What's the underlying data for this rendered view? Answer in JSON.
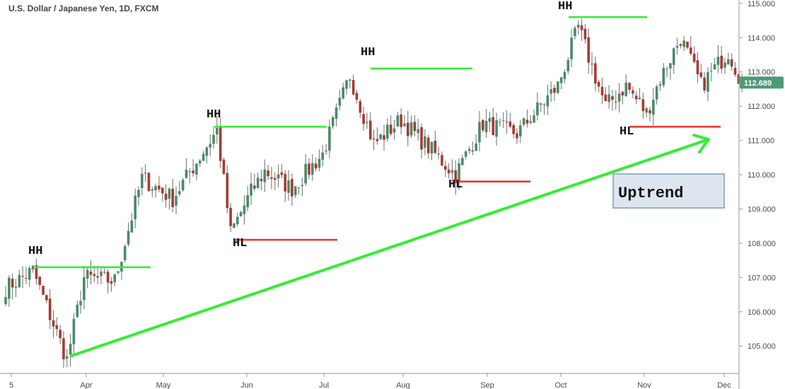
{
  "chart_data": {
    "type": "candlestick",
    "title": "U.S. Dollar / Japanese Yen, 1D, FXCM",
    "x_tick_labels": [
      "5",
      "Apr",
      "May",
      "Jun",
      "Jul",
      "Aug",
      "Sep",
      "Oct",
      "Nov",
      "Dec"
    ],
    "y_tick_labels": [
      "105.000",
      "106.000",
      "107.000",
      "108.000",
      "109.000",
      "110.000",
      "111.000",
      "112.000",
      "113.000",
      "114.000",
      "115.000"
    ],
    "ylim": [
      104.2,
      115.1
    ],
    "last_price": "112.689",
    "grid": false,
    "key_points": [
      {
        "x": 0,
        "y": 106.7
      },
      {
        "x": 8,
        "y": 107.2
      },
      {
        "x": 18,
        "y": 104.6
      },
      {
        "x": 23,
        "y": 107.0
      },
      {
        "x": 32,
        "y": 106.9
      },
      {
        "x": 40,
        "y": 109.9
      },
      {
        "x": 49,
        "y": 109.3
      },
      {
        "x": 62,
        "y": 111.3
      },
      {
        "x": 66,
        "y": 108.3
      },
      {
        "x": 72,
        "y": 109.5
      },
      {
        "x": 76,
        "y": 110.1
      },
      {
        "x": 84,
        "y": 109.6
      },
      {
        "x": 93,
        "y": 110.6
      },
      {
        "x": 101,
        "y": 112.9
      },
      {
        "x": 108,
        "y": 110.9
      },
      {
        "x": 116,
        "y": 111.6
      },
      {
        "x": 125,
        "y": 110.7
      },
      {
        "x": 132,
        "y": 110.0
      },
      {
        "x": 140,
        "y": 111.5
      },
      {
        "x": 150,
        "y": 111.2
      },
      {
        "x": 162,
        "y": 112.6
      },
      {
        "x": 168,
        "y": 114.3
      },
      {
        "x": 176,
        "y": 112.0
      },
      {
        "x": 182,
        "y": 112.6
      },
      {
        "x": 188,
        "y": 111.8
      },
      {
        "x": 192,
        "y": 112.8
      },
      {
        "x": 198,
        "y": 114.0
      },
      {
        "x": 204,
        "y": 112.6
      },
      {
        "x": 212,
        "y": 113.6
      },
      {
        "x": 216,
        "y": 112.7
      }
    ],
    "annotations": [
      {
        "label": "HH",
        "kind": "higher-high",
        "level": 107.3
      },
      {
        "label": "HH",
        "kind": "higher-high",
        "level": 111.4
      },
      {
        "label": "HH",
        "kind": "higher-high",
        "level": 113.1
      },
      {
        "label": "HH",
        "kind": "higher-high",
        "level": 114.6
      },
      {
        "label": "HL",
        "kind": "higher-low",
        "level": 108.1
      },
      {
        "label": "HL",
        "kind": "higher-low",
        "level": 109.8
      },
      {
        "label": "HL",
        "kind": "higher-low",
        "level": 111.4
      }
    ],
    "trend_label": "Uptrend"
  },
  "colors": {
    "up": "#4a8a69",
    "down": "#a63a32",
    "wick": "#6d6d6d",
    "hh_line": "#33ee33",
    "hl_line": "#e53935",
    "trend_arrow": "#33ee33",
    "price_tag": "#4e9a78",
    "uptrend_box_fill": "#dde6ee",
    "uptrend_box_stroke": "#7f9cb5"
  }
}
